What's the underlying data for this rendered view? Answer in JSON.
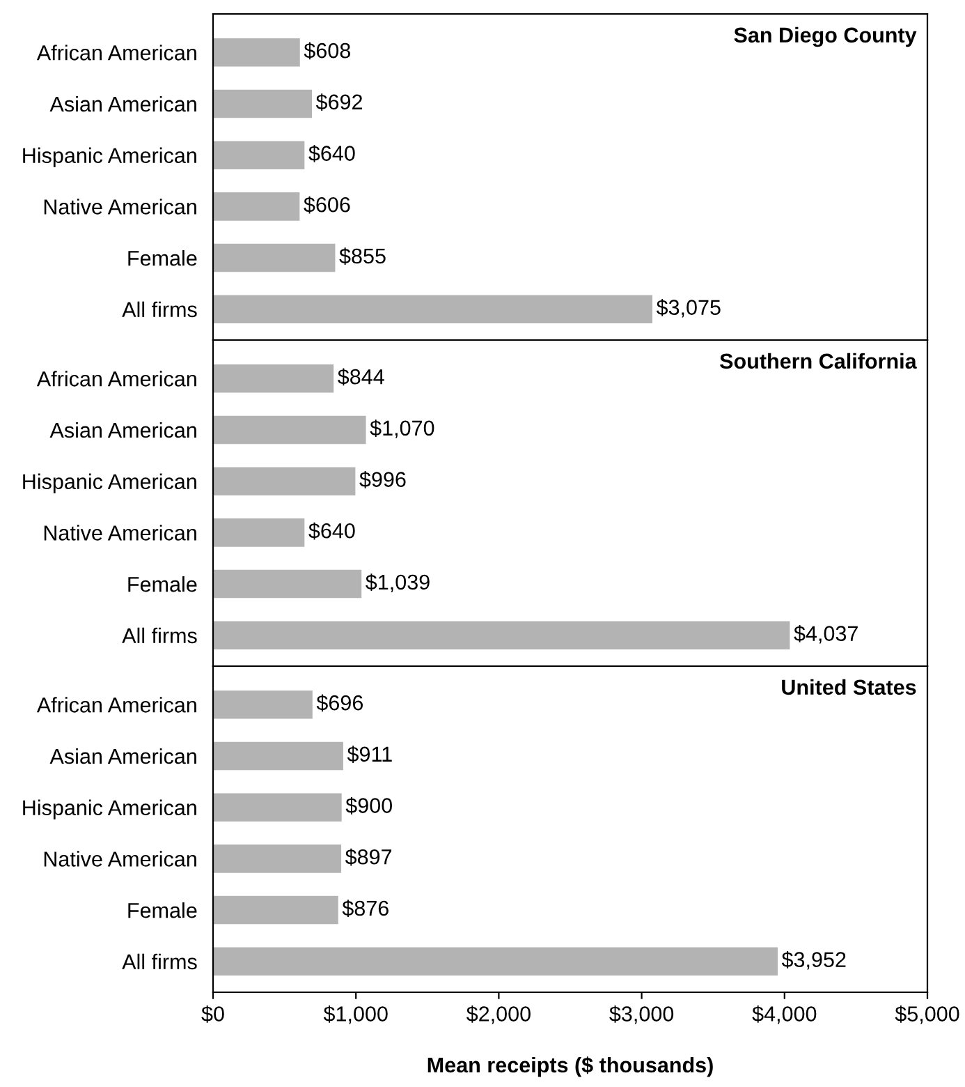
{
  "chart_data": [
    {
      "type": "bar",
      "orientation": "horizontal",
      "title": "San Diego County",
      "categories": [
        "African American",
        "Asian American",
        "Hispanic American",
        "Native American",
        "Female",
        "All firms"
      ],
      "values": [
        608,
        692,
        640,
        606,
        855,
        3075
      ],
      "value_labels": [
        "$608",
        "$692",
        "$640",
        "$606",
        "$855",
        "$3,075"
      ],
      "color": "#b3b3b3",
      "xlim": [
        0,
        5000
      ],
      "tick_labels": "y"
    },
    {
      "type": "bar",
      "orientation": "horizontal",
      "title": "Southern California",
      "categories": [
        "African American",
        "Asian American",
        "Hispanic American",
        "Native American",
        "Female",
        "All firms"
      ],
      "values": [
        844,
        1070,
        996,
        640,
        1039,
        4037
      ],
      "value_labels": [
        "$844",
        "$1,070",
        "$996",
        "$640",
        "$1,039",
        "$4,037"
      ],
      "color": "#b3b3b3",
      "xlim": [
        0,
        5000
      ],
      "tick_labels": "y"
    },
    {
      "type": "bar",
      "orientation": "horizontal",
      "title": "United States",
      "xlabel": "Mean receipts ($ thousands)",
      "categories": [
        "African American",
        "Asian American",
        "Hispanic American",
        "Native American",
        "Female",
        "All firms"
      ],
      "values": [
        696,
        911,
        900,
        897,
        876,
        3952
      ],
      "value_labels": [
        "$696",
        "$911",
        "$900",
        "$897",
        "$876",
        "$3,952"
      ],
      "color": "#b3b3b3",
      "xlim": [
        0,
        5000
      ],
      "xticks": [
        {
          "value": 0,
          "label": "$0"
        },
        {
          "value": 1000,
          "label": "$1,000"
        },
        {
          "value": 2000,
          "label": "$2,000"
        },
        {
          "value": 3000,
          "label": "$3,000"
        },
        {
          "value": 4000,
          "label": "$4,000"
        },
        {
          "value": 5000,
          "label": "$5,000"
        }
      ]
    }
  ]
}
